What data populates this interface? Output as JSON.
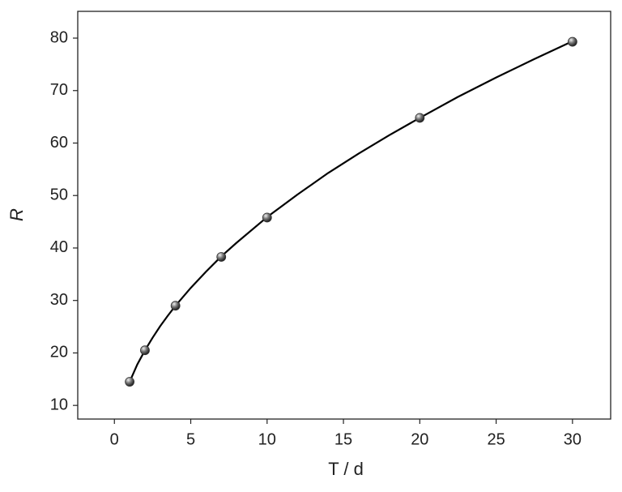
{
  "chart_data": {
    "type": "scatter",
    "x_label": "T / d",
    "y_label": "R",
    "xlim": [
      -2.4,
      32.5
    ],
    "ylim": [
      7.4,
      85.1
    ],
    "xticks": [
      0,
      5,
      10,
      15,
      20,
      25,
      30
    ],
    "yticks": [
      10,
      20,
      30,
      40,
      50,
      60,
      70,
      80
    ],
    "series": [
      {
        "kind": "points",
        "color": "#333333",
        "x": [
          1,
          2,
          4,
          7,
          10,
          20,
          30
        ],
        "values": [
          14.5,
          20.5,
          29,
          38.3,
          45.8,
          64.8,
          79.3
        ]
      },
      {
        "kind": "line",
        "color": "#000000",
        "x": [
          1,
          1.5,
          2,
          2.5,
          3,
          3.5,
          4,
          5,
          6,
          7,
          8,
          10,
          12,
          14,
          16,
          18,
          20,
          22.5,
          25,
          27.5,
          30
        ],
        "values": [
          14.5,
          17.8,
          20.5,
          22.9,
          25.1,
          27.1,
          29,
          32.4,
          35.5,
          38.4,
          41,
          45.9,
          50.2,
          54.3,
          58,
          61.5,
          64.8,
          68.8,
          72.5,
          76,
          79.4
        ]
      }
    ]
  }
}
